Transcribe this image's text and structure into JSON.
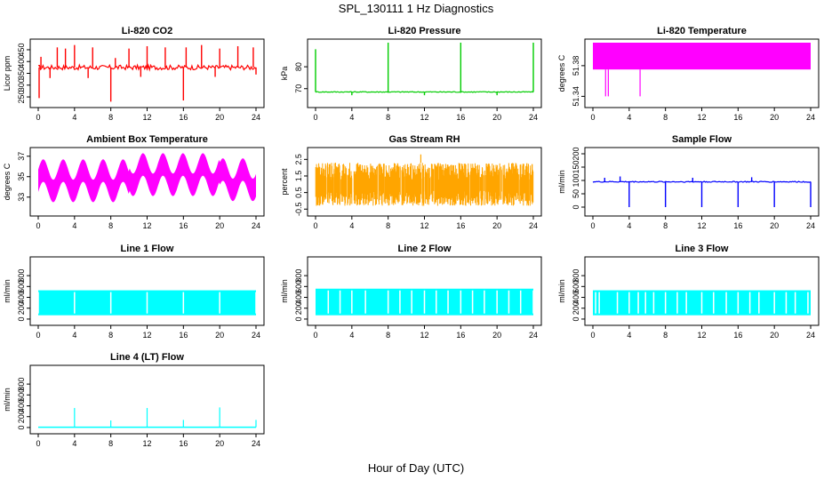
{
  "figure": {
    "title": "SPL_130111  1 Hz Diagnostics",
    "xlabel": "Hour of Day (UTC)"
  },
  "chart_data": [
    {
      "type": "line",
      "title": "Li-820 CO2",
      "ylabel": "Licor ppm",
      "color": "#ff0000",
      "xlim": [
        0,
        24
      ],
      "ylim": [
        220,
        480
      ],
      "xticks": [
        "0",
        "4",
        "8",
        "12",
        "16",
        "20",
        "24"
      ],
      "yticks": [
        "250",
        "300",
        "350",
        "400",
        "450"
      ],
      "series": [
        {
          "baseline": 375,
          "noise": 10,
          "spikes": [
            [
              0.1,
              245
            ],
            [
              0.3,
              420
            ],
            [
              1.3,
              330
            ],
            [
              2.1,
              460
            ],
            [
              3,
              455
            ],
            [
              4,
              470
            ],
            [
              5.5,
              330
            ],
            [
              6,
              460
            ],
            [
              8,
              230
            ],
            [
              8.5,
              415
            ],
            [
              10,
              455
            ],
            [
              11.3,
              335
            ],
            [
              12,
              465
            ],
            [
              14,
              460
            ],
            [
              16,
              235
            ],
            [
              16.3,
              460
            ],
            [
              18,
              470
            ],
            [
              19.5,
              335
            ],
            [
              20,
              455
            ],
            [
              22,
              465
            ],
            [
              23.7,
              460
            ],
            [
              24,
              345
            ]
          ]
        }
      ]
    },
    {
      "type": "line",
      "title": "Li-820 Pressure",
      "ylabel": "kPa",
      "color": "#00cc00",
      "xlim": [
        0,
        24
      ],
      "ylim": [
        63,
        91
      ],
      "xticks": [
        "0",
        "4",
        "8",
        "12",
        "16",
        "20",
        "24"
      ],
      "yticks": [
        "70",
        "80"
      ],
      "series": [
        {
          "baseline": 68.5,
          "noise": 0.2,
          "spikes": [
            [
              0,
              88
            ],
            [
              4,
              67
            ],
            [
              8,
              91
            ],
            [
              12,
              67
            ],
            [
              16,
              91
            ],
            [
              20,
              67
            ],
            [
              24,
              91
            ]
          ]
        }
      ]
    },
    {
      "type": "area",
      "title": "Li-820 Temperature",
      "ylabel": "degrees C",
      "color": "#ff00ff",
      "xlim": [
        0,
        24
      ],
      "ylim": [
        51.33,
        51.41
      ],
      "xticks": [
        "0",
        "4",
        "8",
        "12",
        "16",
        "20",
        "24"
      ],
      "yticks": [
        "51.34",
        "51.38"
      ],
      "series": [
        {
          "band": [
            51.375,
            51.41
          ],
          "spikes": [
            [
              1.4,
              51.34
            ],
            [
              1.7,
              51.34
            ],
            [
              5.2,
              51.34
            ]
          ]
        }
      ]
    },
    {
      "type": "area",
      "title": "Ambient Box Temperature",
      "ylabel": "degrees C",
      "color": "#ff00ff",
      "xlim": [
        0,
        24
      ],
      "ylim": [
        31.5,
        37.5
      ],
      "xticks": [
        "0",
        "4",
        "8",
        "12",
        "16",
        "20",
        "24"
      ],
      "yticks": [
        "33",
        "35",
        "37"
      ],
      "series": [
        {
          "mean": 34.6,
          "amplitude": 1.0,
          "period_hours": 2.2,
          "halfwidth": 1.1
        }
      ]
    },
    {
      "type": "scatter",
      "title": "Gas Stream RH",
      "ylabel": "percent",
      "color": "#ffa500",
      "xlim": [
        0,
        24
      ],
      "ylim": [
        -0.7,
        3.0
      ],
      "xticks": [
        "0",
        "4",
        "8",
        "12",
        "16",
        "20",
        "24"
      ],
      "yticks": [
        "-0.5",
        "0.5",
        "1.5",
        "2.5"
      ],
      "series": [
        {
          "band": [
            -0.3,
            2.3
          ],
          "peak": [
            11.6,
            2.8
          ]
        }
      ]
    },
    {
      "type": "line",
      "title": "Sample Flow",
      "ylabel": "ml/min",
      "color": "#0000ff",
      "xlim": [
        0,
        24
      ],
      "ylim": [
        -20,
        210
      ],
      "xticks": [
        "0",
        "4",
        "8",
        "12",
        "16",
        "20",
        "24"
      ],
      "yticks": [
        "0",
        "50",
        "100",
        "150",
        "200"
      ],
      "series": [
        {
          "baseline": 95,
          "noise": 2,
          "spikes": [
            [
              1.3,
              110
            ],
            [
              3,
              115
            ],
            [
              4,
              0
            ],
            [
              8,
              0
            ],
            [
              11,
              110
            ],
            [
              12,
              0
            ],
            [
              16,
              0
            ],
            [
              17.5,
              112
            ],
            [
              20,
              0
            ],
            [
              24,
              0
            ]
          ]
        }
      ]
    },
    {
      "type": "area",
      "title": "Line 1 Flow",
      "ylabel": "ml/min",
      "color": "#00ffff",
      "xlim": [
        0,
        24
      ],
      "ylim": [
        -50,
        1080
      ],
      "xticks": [
        "0",
        "4",
        "8",
        "12",
        "16",
        "20",
        "24"
      ],
      "yticks": [
        "0",
        "200",
        "400",
        "600",
        "800"
      ],
      "series": [
        {
          "band": [
            70,
            530
          ],
          "gaps": [
            0,
            4,
            8,
            12,
            16,
            20,
            24
          ]
        }
      ]
    },
    {
      "type": "area",
      "title": "Line 2 Flow",
      "ylabel": "ml/min",
      "color": "#00ffff",
      "xlim": [
        0,
        24
      ],
      "ylim": [
        -50,
        1080
      ],
      "xticks": [
        "0",
        "4",
        "8",
        "12",
        "16",
        "20",
        "24"
      ],
      "yticks": [
        "0",
        "200",
        "400",
        "600",
        "800"
      ],
      "series": [
        {
          "band": [
            70,
            560
          ],
          "gaps": [
            1.4,
            2.7,
            4,
            5.5,
            8,
            9.3,
            10.6,
            12,
            13.3,
            14.6,
            16,
            17.3,
            18.6,
            20,
            21.3,
            22.6,
            24
          ]
        }
      ]
    },
    {
      "type": "area",
      "title": "Line 3 Flow",
      "ylabel": "ml/min",
      "color": "#00ffff",
      "xlim": [
        0,
        24
      ],
      "ylim": [
        -50,
        1080
      ],
      "xticks": [
        "0",
        "4",
        "8",
        "12",
        "16",
        "20",
        "24"
      ],
      "yticks": [
        "0",
        "200",
        "400",
        "600",
        "800"
      ],
      "series": [
        {
          "band": [
            70,
            530
          ],
          "gaps": [
            0.3,
            0.7,
            2.7,
            4,
            5,
            5.8,
            6.7,
            8,
            9.3,
            10.3,
            12,
            13.3,
            14.7,
            16,
            17.3,
            18.3,
            20,
            21.3,
            22.3,
            23.7
          ]
        }
      ]
    },
    {
      "type": "line",
      "title": "Line 4 (LT) Flow",
      "ylabel": "ml/min",
      "color": "#00ffff",
      "xlim": [
        0,
        24
      ],
      "ylim": [
        -50,
        1080
      ],
      "xticks": [
        "0",
        "4",
        "8",
        "12",
        "16",
        "20",
        "24"
      ],
      "yticks": [
        "0",
        "200",
        "400",
        "600",
        "800"
      ],
      "series": [
        {
          "baseline": 5,
          "spikes": [
            [
              4,
              360
            ],
            [
              8,
              130
            ],
            [
              12,
              360
            ],
            [
              16,
              140
            ],
            [
              20,
              370
            ],
            [
              24,
              140
            ]
          ]
        }
      ]
    }
  ]
}
